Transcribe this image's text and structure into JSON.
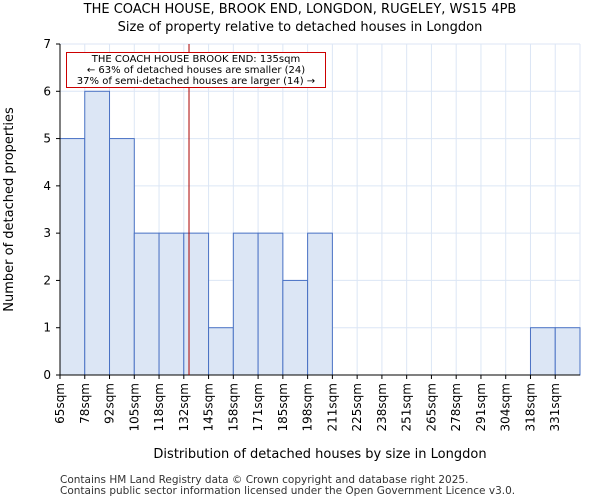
{
  "chart_data": {
    "type": "bar",
    "title": "THE COACH HOUSE, BROOK END, LONGDON, RUGELEY, WS15 4PB",
    "subtitle": "Size of property relative to detached houses in Longdon",
    "xlabel": "Distribution of detached houses by size in Longdon",
    "ylabel": "Number of detached properties",
    "categories": [
      "65sqm",
      "78sqm",
      "92sqm",
      "105sqm",
      "118sqm",
      "132sqm",
      "145sqm",
      "158sqm",
      "171sqm",
      "185sqm",
      "198sqm",
      "211sqm",
      "225sqm",
      "238sqm",
      "251sqm",
      "265sqm",
      "278sqm",
      "291sqm",
      "304sqm",
      "318sqm",
      "331sqm"
    ],
    "values": [
      5,
      6,
      5,
      3,
      3,
      3,
      1,
      3,
      3,
      2,
      3,
      0,
      0,
      0,
      0,
      0,
      0,
      0,
      0,
      1,
      1
    ],
    "ylim": [
      0,
      7
    ],
    "yticks": [
      0,
      1,
      2,
      3,
      4,
      5,
      6,
      7
    ],
    "grid": true,
    "marker": {
      "value_sqm": 135,
      "bin_position": 5.21
    },
    "annotation": [
      "THE COACH HOUSE BROOK END: 135sqm",
      "← 63% of detached houses are smaller (24)",
      "37% of semi-detached houses are larger (14) →"
    ],
    "colors": {
      "bar_fill": "#dce6f5",
      "bar_edge": "#4a72c4",
      "grid": "#dce6f5",
      "marker": "#aa0000",
      "annotation_border": "#cc0000"
    }
  },
  "footer": {
    "line1": "Contains HM Land Registry data © Crown copyright and database right 2025.",
    "line2": "Contains public sector information licensed under the Open Government Licence v3.0."
  }
}
